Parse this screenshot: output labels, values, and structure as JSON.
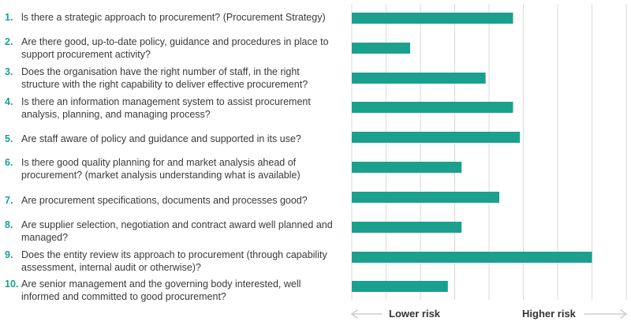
{
  "colors": {
    "bar": "#1aa08c",
    "grid": "#d9d9d9",
    "arrow": "#cfcfcf",
    "number": "#1aa08c",
    "text": "#3a3a3a"
  },
  "chart_data": {
    "type": "bar",
    "orientation": "horizontal",
    "categories": [
      "ls there a strategic approach to procurement? (Procurement Strategy)",
      "Are there good, up-to-date policy, guidance and procedures in place to support procurement activity?",
      "Does the organisation have the right number of staff, in the right structure with the right capability to deliver effective procurement?",
      "Is there an information management system to assist procurement analysis, planning, and managing process?",
      "Are staff aware of policy and guidance and supported in its use?",
      "Is there good quality planning for and market analysis ahead of procurement? (market analysis understanding what is available)",
      "Are procurement specifications, documents and processes good?",
      "Are supplier selection, negotiation and contract award well planned and managed?",
      "Does the entity review its approach to procurement (through capability assessment, internal audit or otherwise)?",
      "Are senior management and the governing body interested, well informed and committed to good procurement?"
    ],
    "numbers": [
      "1.",
      "2.",
      "3.",
      "4.",
      "5.",
      "6.",
      "7.",
      "8.",
      "9.",
      "10."
    ],
    "values": [
      4.7,
      1.7,
      3.9,
      4.7,
      4.9,
      3.2,
      4.3,
      3.2,
      7.0,
      2.8
    ],
    "xlim": [
      0,
      8
    ],
    "grid": true,
    "axis_left_label": "Lower risk",
    "axis_right_label": "Higher risk"
  }
}
